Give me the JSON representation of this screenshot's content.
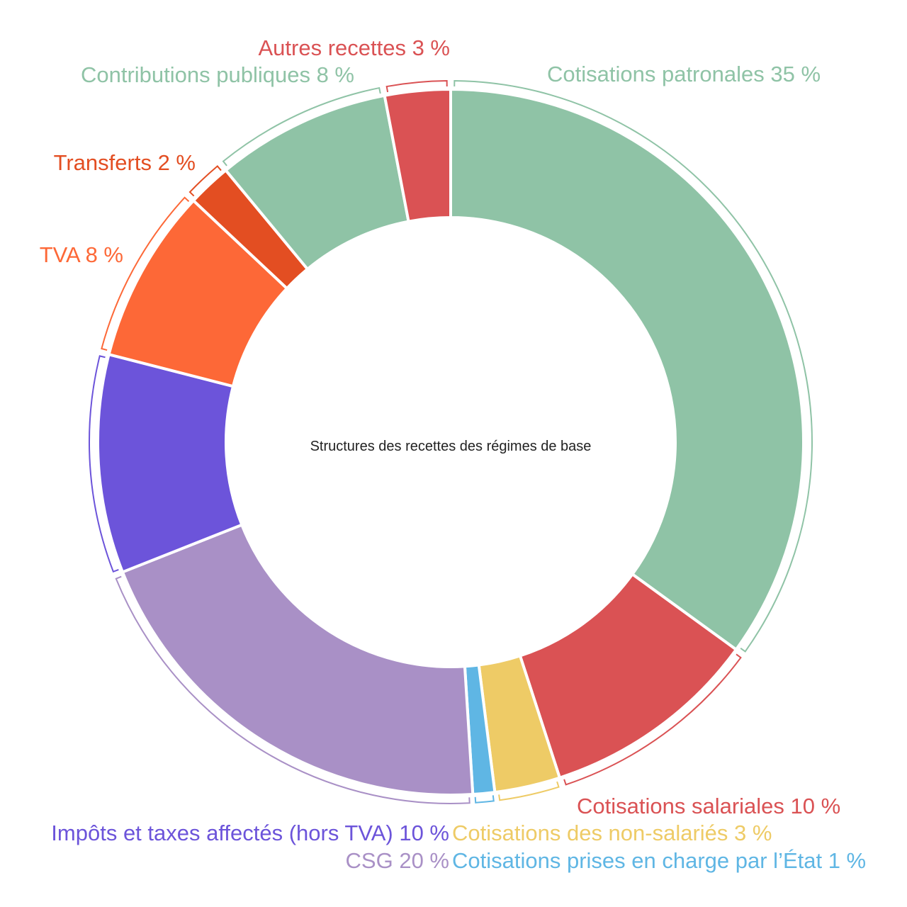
{
  "chart_data": {
    "type": "pie",
    "donut": true,
    "title": "Structures des recettes des régimes de base",
    "unit": "%",
    "slices": [
      {
        "name": "Cotisations patronales",
        "label": "Cotisations patronales 35 %",
        "value": 35,
        "color": "#8fc3a6"
      },
      {
        "name": "Cotisations salariales",
        "label": "Cotisations salariales 10 %",
        "value": 10,
        "color": "#da5254"
      },
      {
        "name": "Cotisations des non-salariés",
        "label": "Cotisations des non-salariés 3 %",
        "value": 3,
        "color": "#eecb66"
      },
      {
        "name": "Cotisations prises en charge par l’État",
        "label": "Cotisations prises en charge par l’État 1 %",
        "value": 1,
        "color": "#5fb6e4"
      },
      {
        "name": "CSG",
        "label": "CSG 20 %",
        "value": 20,
        "color": "#a990c6"
      },
      {
        "name": "Impôts et taxes affectés (hors TVA)",
        "label": "Impôts et taxes affectés (hors TVA) 10 %",
        "value": 10,
        "color": "#6c54da"
      },
      {
        "name": "TVA",
        "label": "TVA 8 %",
        "value": 8,
        "color": "#fd6837"
      },
      {
        "name": "Transferts",
        "label": "Transferts 2 %",
        "value": 2,
        "color": "#e34e22"
      },
      {
        "name": "Contributions publiques",
        "label": "Contributions publiques 8 %",
        "value": 8,
        "color": "#8fc3a6"
      },
      {
        "name": "Autres recettes",
        "label": "Autres recettes 3 %",
        "value": 3,
        "color": "#da5254"
      }
    ]
  }
}
